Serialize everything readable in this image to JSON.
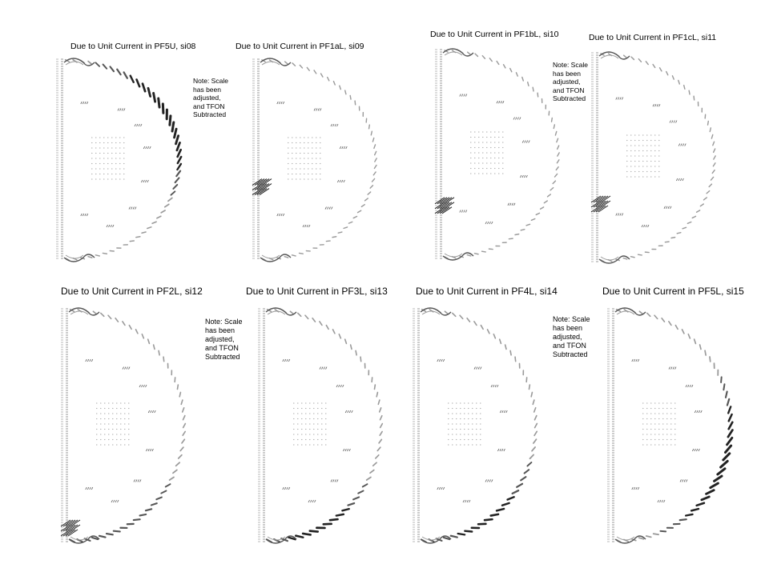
{
  "panels": [
    {
      "title": "Due to Unit Current in PF5U, si08",
      "note": [
        "Note: Scale",
        "has been",
        "adjusted,",
        "and TFON",
        "Subtracted"
      ],
      "coil": "upper-outer"
    },
    {
      "title": "Due to Unit Current in PF1aL, si09",
      "note": [],
      "coil": "lower-inner-a"
    },
    {
      "title": "Due to Unit Current in PF1bL, si10",
      "note": [
        "Note: Scale",
        "has been",
        "adjusted,",
        "and TFON",
        "Subtracted"
      ],
      "coil": "lower-inner-b"
    },
    {
      "title": "Due to Unit Current in PF1cL, si11",
      "note": [],
      "coil": "lower-inner-c"
    },
    {
      "title": "Due to Unit Current in PF2L, si12",
      "note": [
        "Note: Scale",
        "has been",
        "adjusted,",
        "and TFON",
        "Subtracted"
      ],
      "coil": "lower-pf2"
    },
    {
      "title": "Due to Unit Current in PF3L, si13",
      "note": [],
      "coil": "lower-pf3"
    },
    {
      "title": "Due to Unit Current in PF4L, si14",
      "note": [
        "Note: Scale",
        "has been",
        "adjusted,",
        "and TFON",
        "Subtracted"
      ],
      "coil": "lower-pf4"
    },
    {
      "title": "Due to Unit Current in PF5L, si15",
      "note": [],
      "coil": "lower-outer"
    }
  ],
  "colors": {
    "arrow_dark": "#222222",
    "arrow_mid": "#555555",
    "arrow_light": "#9a9a9a",
    "background": "#ffffff"
  }
}
